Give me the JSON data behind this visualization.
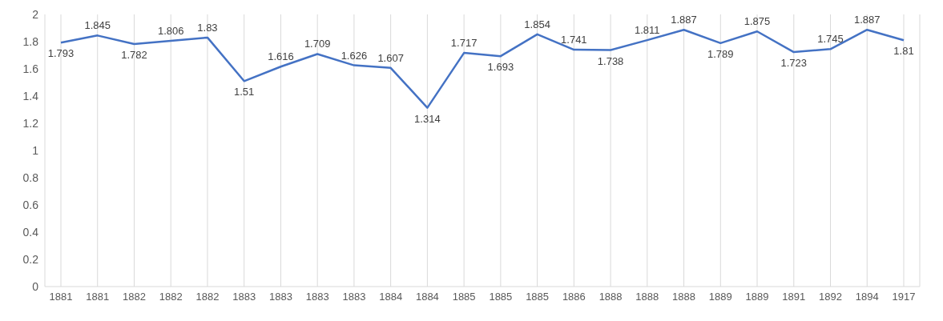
{
  "chart_data": {
    "type": "line",
    "categories": [
      "1881",
      "1881",
      "1882",
      "1882",
      "1882",
      "1883",
      "1883",
      "1883",
      "1883",
      "1884",
      "1884",
      "1885",
      "1885",
      "1885",
      "1886",
      "1888",
      "1888",
      "1888",
      "1889",
      "1889",
      "1891",
      "1892",
      "1894",
      "1917"
    ],
    "series": [
      {
        "color": "#4472c4",
        "values": [
          1.793,
          1.845,
          1.782,
          1.806,
          1.83,
          1.51,
          1.616,
          1.709,
          1.626,
          1.607,
          1.314,
          1.717,
          1.693,
          1.854,
          1.741,
          1.738,
          1.811,
          1.887,
          1.789,
          1.875,
          1.723,
          1.745,
          1.887,
          1.81
        ]
      }
    ],
    "ylim": [
      0,
      2
    ],
    "yticks": [
      0,
      0.2,
      0.4,
      0.6,
      0.8,
      1,
      1.2,
      1.4,
      1.6,
      1.8,
      2
    ],
    "grid": "x",
    "data_labels": true,
    "marker": "none",
    "line_style": "solid"
  }
}
